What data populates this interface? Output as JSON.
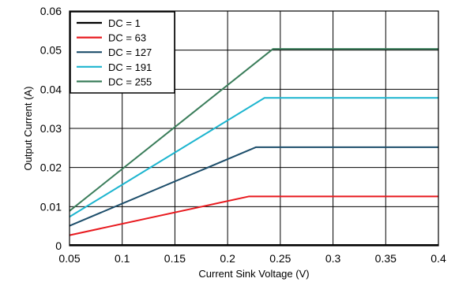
{
  "chart_data": {
    "type": "line",
    "title": "",
    "xlabel": "Current Sink Voltage (V)",
    "ylabel": "Output Current (A)",
    "xlim": [
      0.05,
      0.4
    ],
    "ylim": [
      0,
      0.06
    ],
    "x_ticks": [
      0.05,
      0.1,
      0.15,
      0.2,
      0.25,
      0.3,
      0.35,
      0.4
    ],
    "x_tick_labels": [
      "0.05",
      "0.1",
      "0.15",
      "0.2",
      "0.25",
      "0.3",
      "0.35",
      "0.4"
    ],
    "y_ticks": [
      0,
      0.01,
      0.02,
      0.03,
      0.04,
      0.05,
      0.06
    ],
    "y_tick_labels": [
      "0",
      "0.01",
      "0.02",
      "0.03",
      "0.04",
      "0.05",
      "0.06"
    ],
    "grid": true,
    "legend_position": "top-left",
    "series": [
      {
        "name": "DC = 1",
        "color": "#000000",
        "x": [
          0.05,
          0.205,
          0.4
        ],
        "y": [
          0.0002,
          0.0002,
          0.0002
        ]
      },
      {
        "name": "DC = 63",
        "color": "#e8191e",
        "x": [
          0.05,
          0.22,
          0.4
        ],
        "y": [
          0.0027,
          0.0126,
          0.0126
        ]
      },
      {
        "name": "DC = 127",
        "color": "#1d4e6b",
        "x": [
          0.05,
          0.227,
          0.4
        ],
        "y": [
          0.0051,
          0.0252,
          0.0252
        ]
      },
      {
        "name": "DC = 191",
        "color": "#1db5cf",
        "x": [
          0.05,
          0.235,
          0.4
        ],
        "y": [
          0.0074,
          0.0378,
          0.0378
        ]
      },
      {
        "name": "DC = 255",
        "color": "#3a7d5a",
        "x": [
          0.05,
          0.243,
          0.4
        ],
        "y": [
          0.0089,
          0.0503,
          0.0503
        ]
      }
    ]
  }
}
